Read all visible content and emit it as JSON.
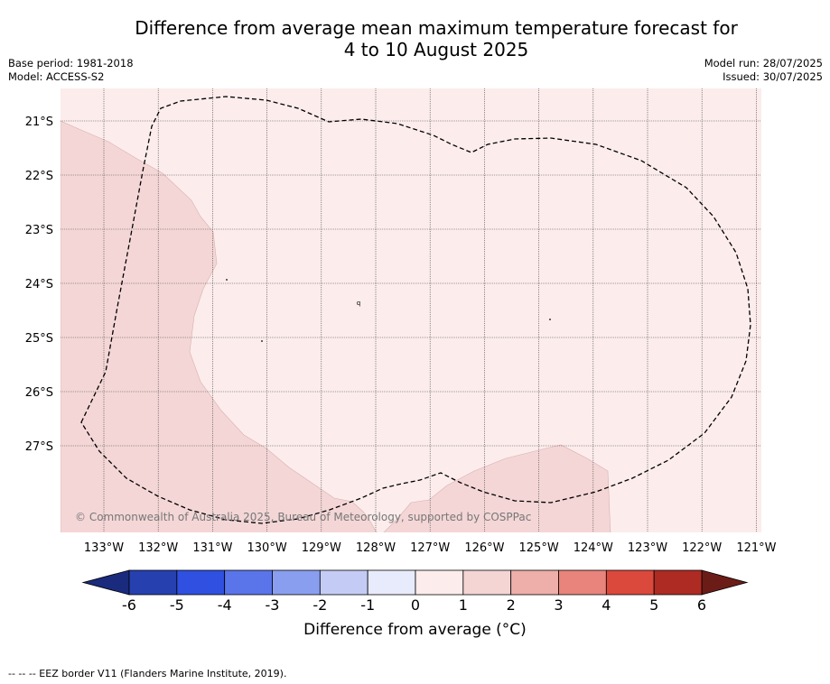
{
  "title_line1": "Difference from average mean maximum temperature forecast for",
  "title_line2": "4 to 10 August 2025",
  "base_period": "Base period: 1981-2018",
  "model": "Model: ACCESS-S2",
  "model_run": "Model run: 28/07/2025",
  "issued": "Issued: 30/07/2025",
  "lat_labels": [
    "21°S",
    "22°S",
    "23°S",
    "24°S",
    "25°S",
    "26°S",
    "27°S"
  ],
  "lon_labels": [
    "133°W",
    "132°W",
    "131°W",
    "130°W",
    "129°W",
    "128°W",
    "127°W",
    "126°W",
    "125°W",
    "124°W",
    "123°W",
    "122°W",
    "121°W"
  ],
  "copyright": "© Commonwealth of Australia 2025, Bureau of Meteorology, supported by COSPPac",
  "colorbar": {
    "ticks": [
      "-6",
      "-5",
      "-4",
      "-3",
      "-2",
      "-1",
      "0",
      "1",
      "2",
      "3",
      "4",
      "5",
      "6"
    ],
    "bin_colors": [
      "#2640b0",
      "#2f50e0",
      "#5a74ea",
      "#8a9ef0",
      "#c4ccf6",
      "#e8ebfb",
      "#fcecec",
      "#f5d4d4",
      "#eeaea9",
      "#e8847c",
      "#db483c",
      "#ae2b23"
    ],
    "under_color": "#1a2a7c",
    "over_color": "#6c1c16",
    "label": "Difference from average (°C)"
  },
  "map_colors": {
    "anomaly_0_1": "#fcecec",
    "anomaly_1_2": "#f4d6d6",
    "grid": "#444444",
    "eez": "#000000"
  },
  "footnote": "-- -- -- EEZ border V11 (Flanders Marine Institute, 2019)."
}
